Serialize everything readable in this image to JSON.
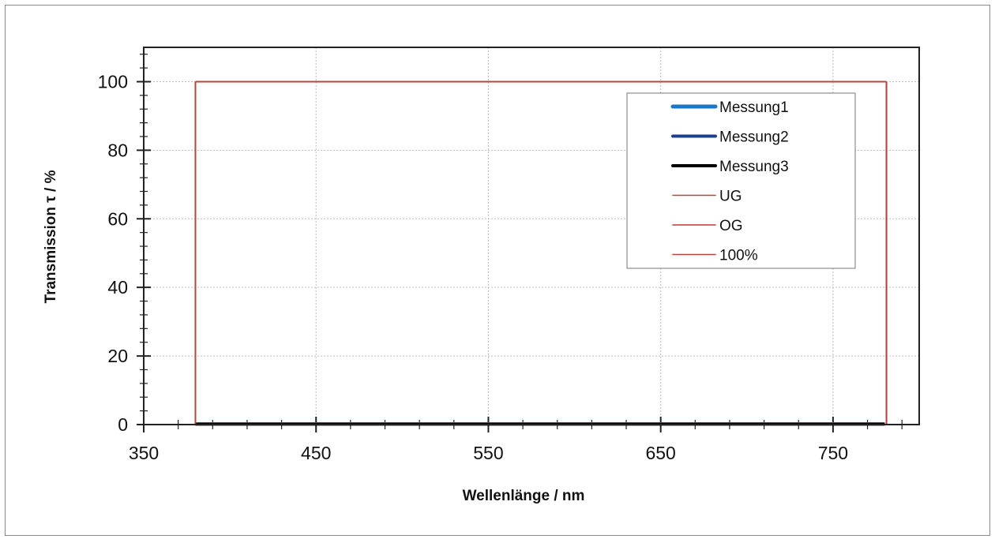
{
  "chart_data": {
    "type": "line",
    "title": "",
    "xlabel": "Wellenlänge / nm",
    "ylabel": "Transmission τ / %",
    "xlim": [
      350,
      800
    ],
    "ylim": [
      0,
      110
    ],
    "x_ticks": [
      350,
      450,
      550,
      650,
      750
    ],
    "y_ticks": [
      0,
      20,
      40,
      60,
      80,
      100
    ],
    "grid": true,
    "legend_position": "top-right",
    "series": [
      {
        "name": "Messung1",
        "color": "#1f77c4",
        "x": [
          380,
          780
        ],
        "y": [
          0.3,
          0.3
        ]
      },
      {
        "name": "Messung2",
        "color": "#1a3f8c",
        "x": [
          380,
          780
        ],
        "y": [
          0.2,
          0.2
        ]
      },
      {
        "name": "Messung3",
        "color": "#000000",
        "x": [
          380,
          780
        ],
        "y": [
          0.1,
          0.1
        ]
      },
      {
        "name": "UG",
        "color": "#b5473a",
        "x": [
          380,
          380
        ],
        "y": [
          0,
          100
        ]
      },
      {
        "name": "OG",
        "color": "#cc3333",
        "x": [
          781,
          781
        ],
        "y": [
          0,
          100
        ]
      },
      {
        "name": "100%",
        "color": "#b5473a",
        "x": [
          380,
          781
        ],
        "y": [
          100,
          100
        ]
      }
    ]
  }
}
